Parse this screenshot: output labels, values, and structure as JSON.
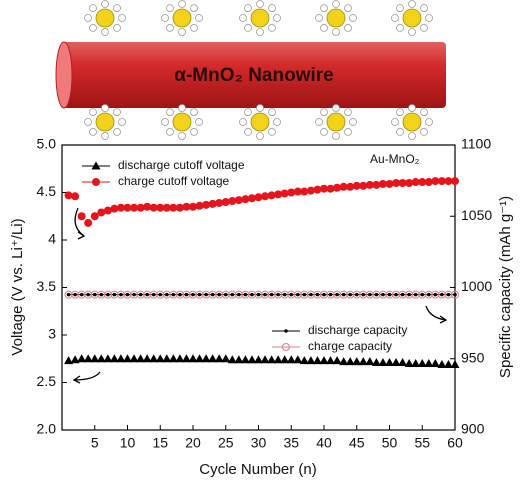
{
  "illustration_label": "α-MnO₂ Nanowire",
  "chart_data": {
    "type": "scatter",
    "annotation": "Au-MnO₂",
    "x_label": "Cycle Number (n)",
    "y_label": "Voltage (V vs. Li⁺/Li)",
    "y2_label": "Specific capacity (mAh g⁻¹)",
    "x": [
      1,
      2,
      3,
      4,
      5,
      6,
      7,
      8,
      9,
      10,
      11,
      12,
      13,
      14,
      15,
      16,
      17,
      18,
      19,
      20,
      21,
      22,
      23,
      24,
      25,
      26,
      27,
      28,
      29,
      30,
      31,
      32,
      33,
      34,
      35,
      36,
      37,
      38,
      39,
      40,
      41,
      42,
      43,
      44,
      45,
      46,
      47,
      48,
      49,
      50,
      51,
      52,
      53,
      54,
      55,
      56,
      57,
      58,
      59,
      60
    ],
    "xlim": [
      0,
      60
    ],
    "xticks": [
      5,
      10,
      15,
      20,
      25,
      30,
      35,
      40,
      45,
      50,
      55,
      60
    ],
    "ylim": [
      2.0,
      5.0
    ],
    "yticks": [
      {
        "value": 2.0,
        "label": "2.0"
      },
      2.5,
      3.0,
      3.5,
      4.0,
      4.5,
      {
        "value": 5.0,
        "label": "5.0"
      }
    ],
    "y2lim": [
      900,
      1100
    ],
    "y2ticks": [
      900,
      950,
      1000,
      1050,
      1100
    ],
    "series": [
      {
        "name": "discharge cutoff voltage",
        "color": "#000000",
        "marker": "triangle",
        "axis": "y",
        "values": [
          2.73,
          2.74,
          2.75,
          2.75,
          2.75,
          2.75,
          2.75,
          2.75,
          2.75,
          2.75,
          2.75,
          2.75,
          2.75,
          2.75,
          2.75,
          2.75,
          2.75,
          2.75,
          2.75,
          2.75,
          2.75,
          2.75,
          2.75,
          2.75,
          2.75,
          2.74,
          2.74,
          2.74,
          2.74,
          2.74,
          2.74,
          2.74,
          2.74,
          2.74,
          2.74,
          2.74,
          2.73,
          2.73,
          2.73,
          2.73,
          2.73,
          2.73,
          2.72,
          2.72,
          2.72,
          2.72,
          2.72,
          2.71,
          2.71,
          2.71,
          2.71,
          2.71,
          2.7,
          2.7,
          2.7,
          2.7,
          2.7,
          2.69,
          2.69,
          2.69
        ]
      },
      {
        "name": "charge cutoff voltage",
        "color": "#e8141b",
        "marker": "circle",
        "axis": "y",
        "values": [
          4.47,
          4.46,
          4.25,
          4.18,
          4.25,
          4.29,
          4.31,
          4.33,
          4.34,
          4.34,
          4.34,
          4.34,
          4.35,
          4.34,
          4.34,
          4.34,
          4.34,
          4.34,
          4.35,
          4.35,
          4.36,
          4.37,
          4.38,
          4.39,
          4.4,
          4.41,
          4.42,
          4.43,
          4.44,
          4.45,
          4.46,
          4.47,
          4.48,
          4.49,
          4.5,
          4.51,
          4.51,
          4.52,
          4.53,
          4.54,
          4.54,
          4.55,
          4.56,
          4.56,
          4.57,
          4.57,
          4.58,
          4.58,
          4.59,
          4.59,
          4.6,
          4.6,
          4.6,
          4.61,
          4.61,
          4.61,
          4.62,
          4.62,
          4.62,
          4.62
        ]
      },
      {
        "name": "discharge capacity",
        "color": "#000000",
        "marker": "dot",
        "line": true,
        "axis": "y2",
        "values": [
          995,
          995,
          995,
          995,
          995,
          995,
          995,
          995,
          995,
          995,
          995,
          995,
          995,
          995,
          995,
          995,
          995,
          995,
          995,
          995,
          995,
          995,
          995,
          995,
          995,
          995,
          995,
          995,
          995,
          995,
          995,
          995,
          995,
          995,
          995,
          995,
          995,
          995,
          995,
          995,
          995,
          995,
          995,
          995,
          995,
          995,
          995,
          995,
          995,
          995,
          995,
          995,
          995,
          995,
          995,
          995,
          995,
          995,
          995,
          995
        ]
      },
      {
        "name": "charge capacity",
        "color": "#d9808a",
        "marker": "open-circle",
        "axis": "y2",
        "values": [
          995,
          995,
          995,
          995,
          995,
          995,
          995,
          995,
          995,
          995,
          995,
          995,
          995,
          995,
          995,
          995,
          995,
          995,
          995,
          995,
          995,
          995,
          995,
          995,
          995,
          995,
          995,
          995,
          995,
          995,
          995,
          995,
          995,
          995,
          995,
          995,
          995,
          995,
          995,
          995,
          995,
          995,
          995,
          995,
          995,
          995,
          995,
          995,
          995,
          995,
          995,
          995,
          995,
          995,
          995,
          995,
          995,
          995,
          995,
          995
        ]
      }
    ]
  }
}
